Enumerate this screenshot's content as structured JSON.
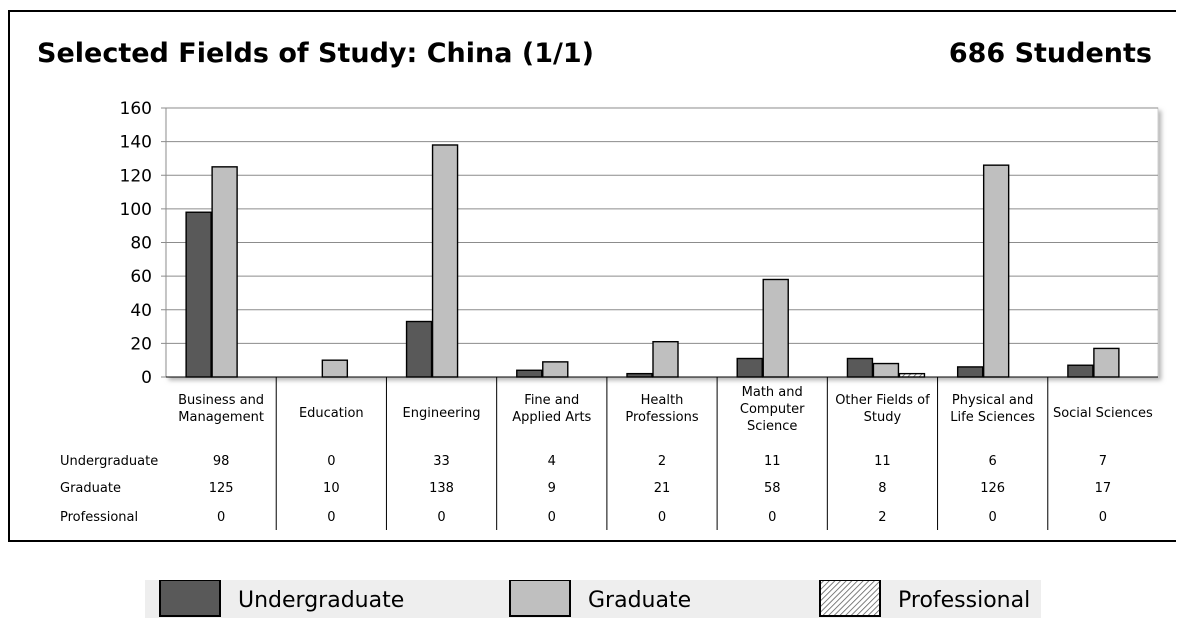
{
  "header": {
    "title": "Selected Fields of Study: China (1/1)",
    "total": "686 Students"
  },
  "chart_data": {
    "type": "bar",
    "title": "Selected Fields of Study: China (1/1)",
    "ylim": [
      0,
      160
    ],
    "yticks": [
      0,
      20,
      40,
      60,
      80,
      100,
      120,
      140,
      160
    ],
    "grid": true,
    "legend_position": "bottom",
    "categories": [
      [
        "Business and",
        "Management"
      ],
      [
        "Education"
      ],
      [
        "Engineering"
      ],
      [
        "Fine and",
        "Applied Arts"
      ],
      [
        "Health",
        "Professions"
      ],
      [
        "Math and",
        "Computer",
        "Science"
      ],
      [
        "Other Fields of",
        "Study"
      ],
      [
        "Physical and",
        "Life Sciences"
      ],
      [
        "Social Sciences"
      ]
    ],
    "series": [
      {
        "name": "Undergraduate",
        "values": [
          98,
          0,
          33,
          4,
          2,
          11,
          11,
          6,
          7
        ],
        "color": "#595959",
        "pattern": "solid"
      },
      {
        "name": "Graduate",
        "values": [
          125,
          10,
          138,
          9,
          21,
          58,
          8,
          126,
          17
        ],
        "color": "#bfbfbf",
        "pattern": "solid"
      },
      {
        "name": "Professional",
        "values": [
          0,
          0,
          0,
          0,
          0,
          0,
          2,
          0,
          0
        ],
        "color": "#ffffff",
        "pattern": "hatch"
      }
    ]
  }
}
